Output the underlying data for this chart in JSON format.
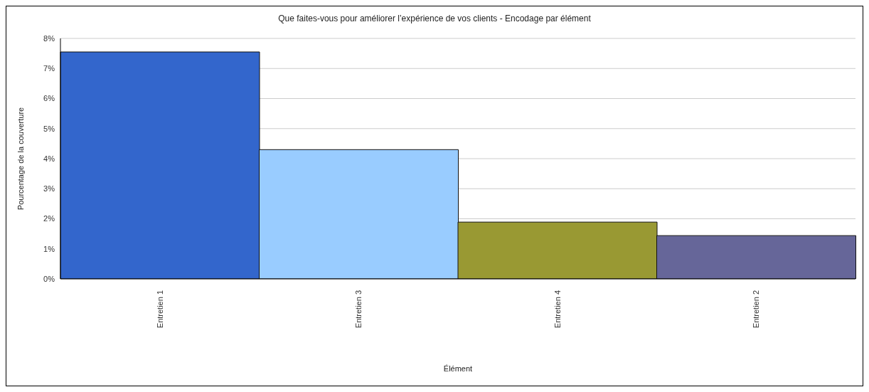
{
  "chart_data": {
    "type": "bar",
    "title": "Que faites-vous pour améliorer l’expérience de vos clients - Encodage par élément",
    "xlabel": "Élément",
    "ylabel": "Pourcentage de la couverture",
    "categories": [
      "Entretien 1",
      "Entretien 3",
      "Entretien 4",
      "Entretien 2"
    ],
    "values": [
      7.55,
      4.3,
      1.89,
      1.44
    ],
    "colors": [
      "#3366cc",
      "#99ccff",
      "#999933",
      "#666699"
    ],
    "ylim": [
      0,
      8
    ],
    "yticks": [
      {
        "value": 0,
        "label": "0%"
      },
      {
        "value": 1,
        "label": "1%"
      },
      {
        "value": 2,
        "label": "2%"
      },
      {
        "value": 3,
        "label": "3%"
      },
      {
        "value": 4,
        "label": "4%"
      },
      {
        "value": 5,
        "label": "5%"
      },
      {
        "value": 6,
        "label": "6%"
      },
      {
        "value": 7,
        "label": "7%"
      },
      {
        "value": 8,
        "label": "8%"
      }
    ],
    "grid": "y"
  }
}
